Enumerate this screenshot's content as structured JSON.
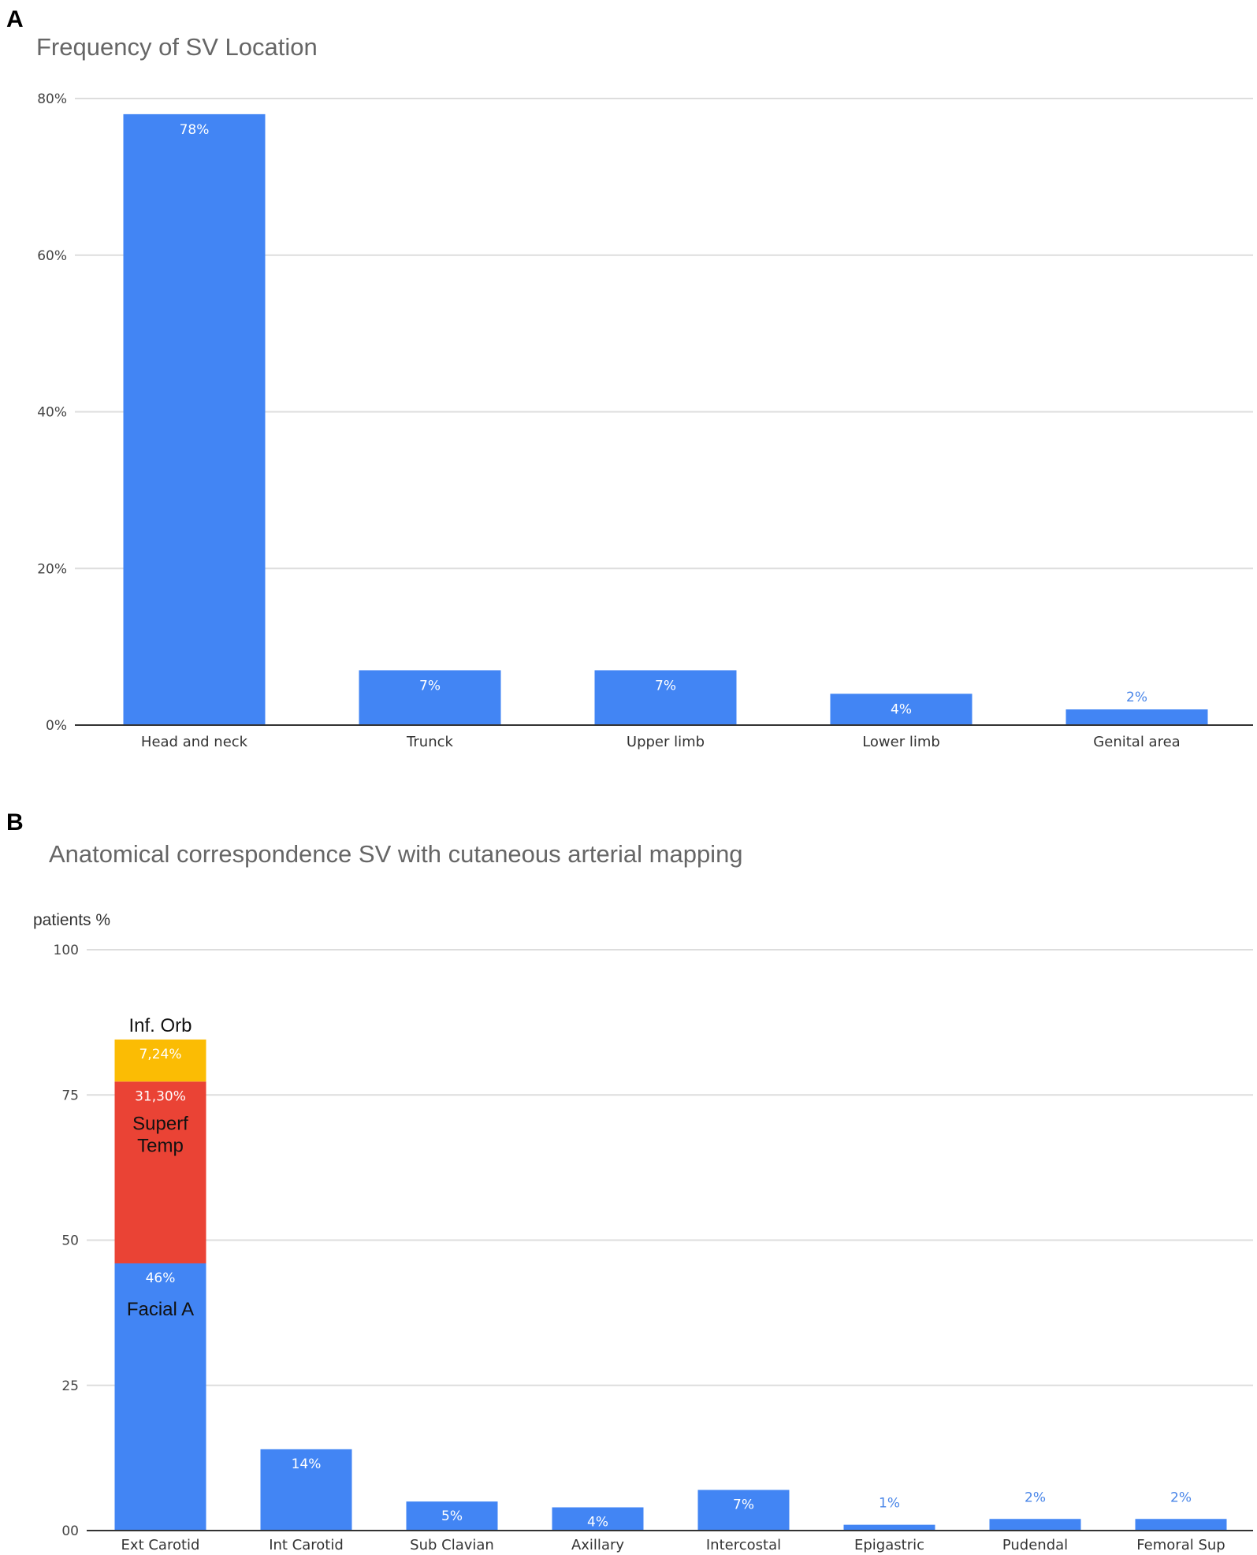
{
  "panels": {
    "a_letter": "A",
    "b_letter": "B"
  },
  "chart_data": [
    {
      "type": "bar",
      "title": "Frequency of SV Location",
      "xlabel": "",
      "ylabel": "",
      "ylim": [
        0,
        80
      ],
      "yticks": [
        "0%",
        "20%",
        "40%",
        "60%",
        "80%"
      ],
      "ytick_values": [
        0,
        20,
        40,
        60,
        80
      ],
      "categories": [
        "Head and neck",
        "Trunck",
        "Upper limb",
        "Lower limb",
        "Genital area"
      ],
      "values": [
        78,
        7,
        7,
        4,
        2
      ],
      "data_labels": [
        "78%",
        "7%",
        "7%",
        "4%",
        "2%"
      ],
      "color": "#4285f4",
      "grid": true,
      "legend": "none"
    },
    {
      "type": "bar",
      "stacked": true,
      "title": "Anatomical correspondence SV with cutaneous arterial mapping",
      "xlabel": "",
      "ylabel": "patients %",
      "ylim": [
        0,
        100
      ],
      "yticks": [
        "00",
        "25",
        "50",
        "75",
        "100"
      ],
      "ytick_values": [
        0,
        25,
        50,
        75,
        100
      ],
      "categories": [
        "Ext Carotid",
        "Int Carotid",
        "Sub Clavian",
        "Axillary",
        "Intercostal",
        "Epigastric",
        "Pudendal",
        "Femoral Sup"
      ],
      "values": [
        46,
        14,
        5,
        4,
        7,
        1,
        2,
        2
      ],
      "data_labels": [
        "46%",
        "14%",
        "5%",
        "4%",
        "7%",
        "1%",
        "2%",
        "2%"
      ],
      "stack_segments": [
        {
          "name": "Facial A",
          "value": 46,
          "label": "46%",
          "color": "#4285f4"
        },
        {
          "name": "Superf Temp",
          "value": 31.3,
          "label": "31,30%",
          "color": "#ea4335"
        },
        {
          "name": "Inf. Orb",
          "value": 7.24,
          "label": "7,24%",
          "color": "#fbbc04"
        }
      ],
      "color": "#4285f4",
      "grid": true,
      "legend": "none"
    }
  ]
}
